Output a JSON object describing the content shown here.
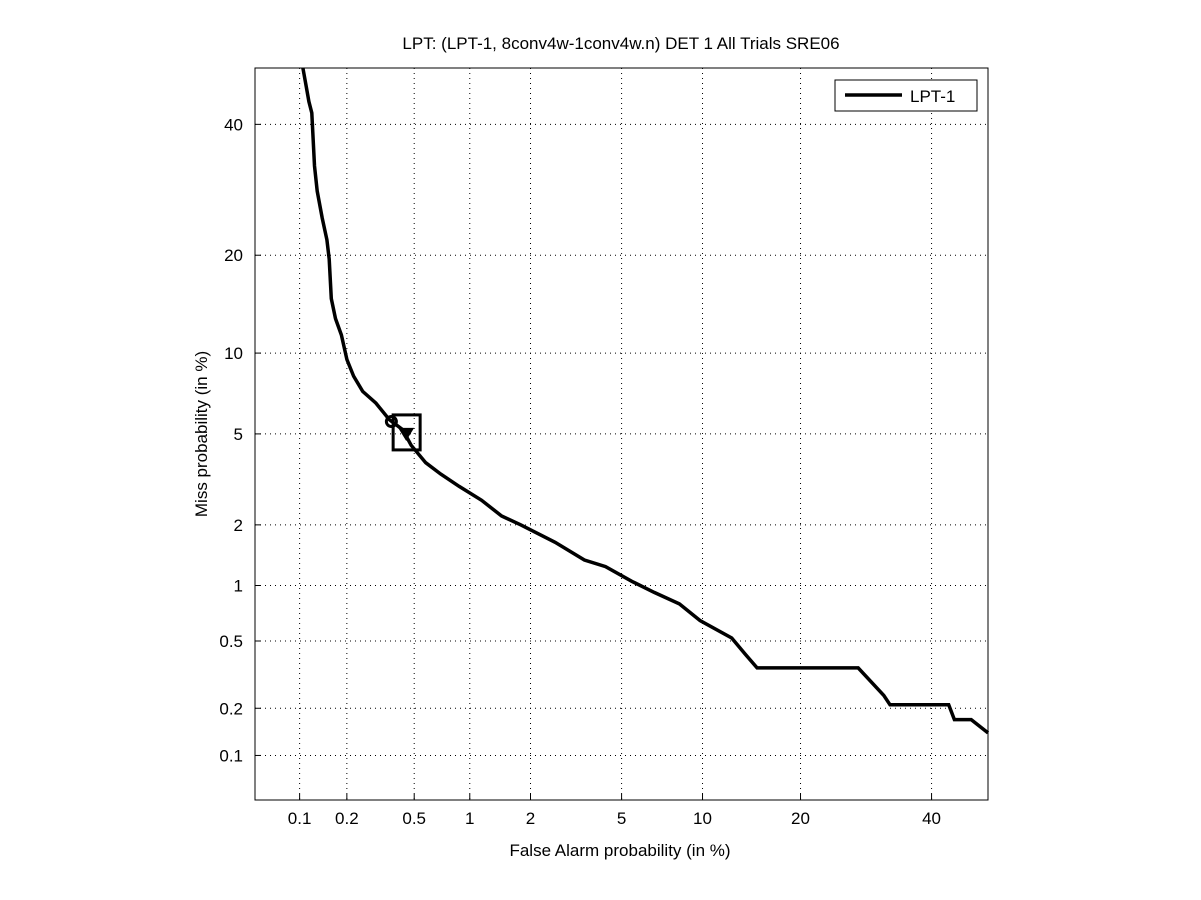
{
  "chart_data": {
    "type": "line",
    "title": "LPT: (LPT-1, 8conv4w-1conv4w.n) DET 1 All Trials SRE06",
    "xlabel": "False Alarm probability (in %)",
    "ylabel": "Miss probability (in %)",
    "scale": "probit",
    "xlim": [
      0.05,
      50
    ],
    "ylim": [
      0.05,
      50
    ],
    "grid": true,
    "legend_position": "top-right",
    "x_ticks": [
      0.1,
      0.2,
      0.5,
      1,
      2,
      5,
      10,
      20,
      40
    ],
    "x_tick_labels": [
      "0.1",
      "0.2",
      "0.5",
      "1",
      "2",
      "5",
      "10",
      "20",
      "40"
    ],
    "y_ticks": [
      0.1,
      0.2,
      0.5,
      1,
      2,
      5,
      10,
      20,
      40
    ],
    "y_tick_labels": [
      "0.1",
      "0.2",
      "0.5",
      "1",
      "2",
      "5",
      "10",
      "20",
      "40"
    ],
    "series": [
      {
        "name": "LPT-1",
        "color": "#000000",
        "x": [
          0.105,
          0.11,
          0.115,
          0.12,
          0.125,
          0.13,
          0.14,
          0.15,
          0.155,
          0.16,
          0.17,
          0.185,
          0.2,
          0.22,
          0.25,
          0.3,
          0.36,
          0.43,
          0.48,
          0.58,
          0.7,
          0.88,
          1.15,
          1.45,
          1.8,
          2.6,
          3.5,
          4.3,
          5.5,
          6.7,
          8.3,
          9.8,
          12.5,
          13.8,
          15,
          28,
          32,
          33,
          43,
          44,
          47,
          50
        ],
        "y": [
          50,
          47,
          44,
          42,
          33,
          29,
          25,
          22,
          19.5,
          15,
          13,
          11.5,
          9.5,
          8.3,
          7.3,
          6.6,
          5.7,
          5.2,
          4.5,
          3.8,
          3.4,
          3.0,
          2.6,
          2.2,
          2.0,
          1.65,
          1.35,
          1.25,
          1.05,
          0.92,
          0.8,
          0.65,
          0.52,
          0.42,
          0.35,
          0.35,
          0.24,
          0.21,
          0.21,
          0.17,
          0.17,
          0.14
        ]
      }
    ],
    "markers": [
      {
        "name": "actual-decision-point",
        "shape": "circle",
        "x": 0.37,
        "y": 5.6
      },
      {
        "name": "min-dcf-point",
        "shape": "triangle",
        "x": 0.45,
        "y": 5.0
      },
      {
        "name": "confidence-box",
        "shape": "square",
        "x": 0.45,
        "y": 5.0
      }
    ]
  }
}
